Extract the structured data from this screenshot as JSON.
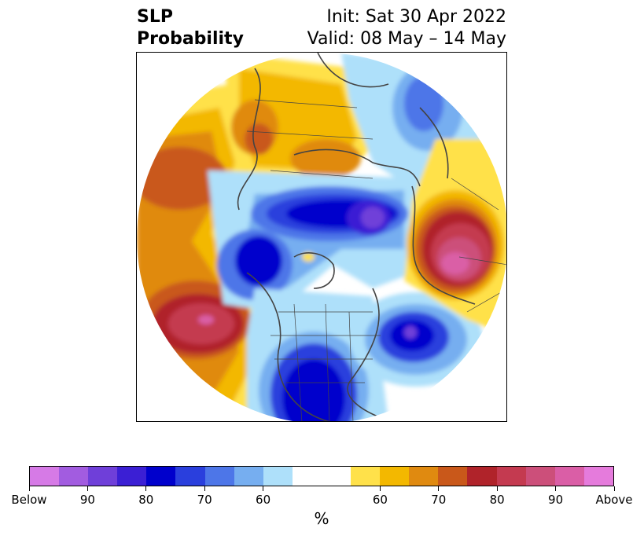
{
  "title": {
    "left_line1": "SLP",
    "left_line2": "Probability",
    "right_line1": "Init: Sat 30 Apr 2022",
    "right_line2": "Valid: 08 May – 14 May"
  },
  "colorbar": {
    "unit": "%",
    "colors": [
      "#d67ae6",
      "#a25ce0",
      "#6f3fd9",
      "#3b1fd4",
      "#0000cc",
      "#2a3fdd",
      "#4d76e8",
      "#76aef0",
      "#aee0fa",
      "#ffffff",
      "#ffffff",
      "#ffe14a",
      "#f3b800",
      "#e08a10",
      "#c9581a",
      "#b0232a",
      "#c43a50",
      "#cc4f7a",
      "#da5ea6",
      "#e57bdc"
    ],
    "ticks": [
      "Below",
      "90",
      "80",
      "70",
      "60",
      "60",
      "70",
      "80",
      "90",
      "Above"
    ]
  }
}
